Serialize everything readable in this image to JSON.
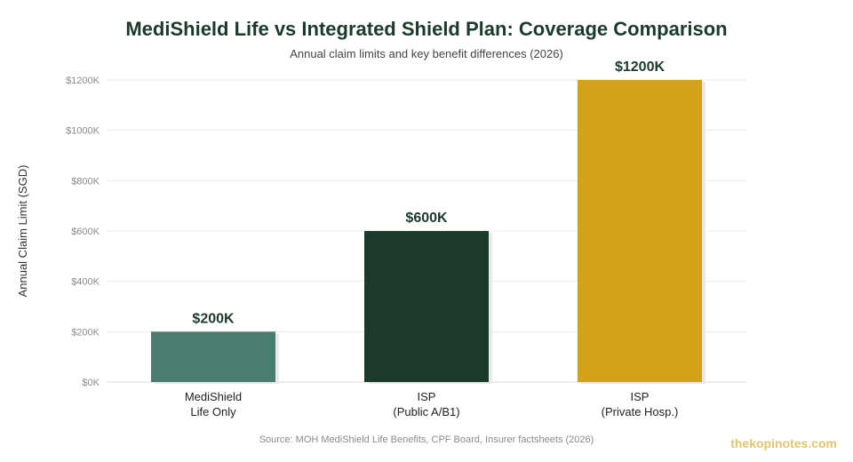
{
  "header": {
    "title": "MediShield Life vs Integrated Shield Plan: Coverage Comparison",
    "subtitle": "Annual claim limits and key benefit differences (2026)"
  },
  "footer": {
    "source": "Source: MOH MediShield Life Benefits, CPF Board, Insurer factsheets (2026)",
    "brand": "thekopinotes.com"
  },
  "chart_data": {
    "type": "bar",
    "title": "MediShield Life vs Integrated Shield Plan: Coverage Comparison",
    "subtitle": "Annual claim limits and key benefit differences (2026)",
    "xlabel": "",
    "ylabel": "Annual Claim Limit (SGD)",
    "ylim": [
      0,
      1200
    ],
    "yticks": [
      0,
      200,
      400,
      600,
      800,
      1000,
      1200
    ],
    "ytick_labels": [
      "$0K",
      "$200K",
      "$400K",
      "$600K",
      "$800K",
      "$1000K",
      "$1200K"
    ],
    "grid": true,
    "categories": [
      [
        "MediShield",
        "Life Only"
      ],
      [
        "ISP",
        "(Public A/B1)"
      ],
      [
        "ISP",
        "(Private Hosp.)"
      ]
    ],
    "values": [
      200,
      600,
      1200
    ],
    "value_labels": [
      "$200K",
      "$600K",
      "$1200K"
    ],
    "colors": [
      "#4a7c6f",
      "#1b3a2b",
      "#d4a21a"
    ]
  }
}
